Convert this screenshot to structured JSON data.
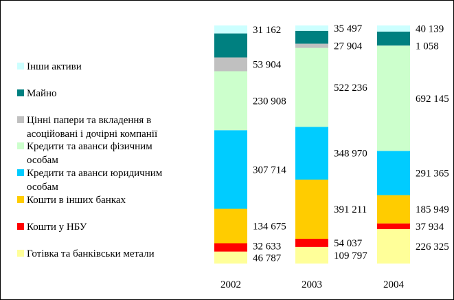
{
  "chart_data": {
    "type": "bar",
    "stacked": true,
    "normalized_100_percent": true,
    "categories": [
      "2002",
      "2003",
      "2004"
    ],
    "series": [
      {
        "name": "Готівка та банківськи метали",
        "color": "#FFFF99",
        "values": [
          46787,
          109797,
          226325
        ],
        "labels": [
          "46 787",
          "109 797",
          "226 325"
        ]
      },
      {
        "name": "Кошти у НБУ",
        "color": "#FF0000",
        "values": [
          32633,
          54037,
          37934
        ],
        "labels": [
          "32 633",
          "54 037",
          "37 934"
        ]
      },
      {
        "name": "Кошти в інших банках",
        "color": "#FFCC00",
        "values": [
          134675,
          391211,
          185949
        ],
        "labels": [
          "134 675",
          "391 211",
          "185 949"
        ]
      },
      {
        "name": "Кредити та аванси юридичним особам",
        "color": "#00CCFF",
        "values": [
          307714,
          348970,
          291365
        ],
        "labels": [
          "307 714",
          "348 970",
          "291 365"
        ]
      },
      {
        "name": "Кредити та аванси фізичним особам",
        "color": "#CCFFCC",
        "values": [
          230908,
          522236,
          692145
        ],
        "labels": [
          "230 908",
          "522 236",
          "692 145"
        ]
      },
      {
        "name": "Цінні папери та вкладення в асоційовані і дочірні компанії",
        "color": "#C0C0C0",
        "values": [
          53904,
          27904,
          1058
        ],
        "labels": [
          "53 904",
          "27 904",
          "1 058"
        ]
      },
      {
        "name": "Майно",
        "color": "#008080",
        "values": [
          94000,
          85000,
          92000
        ],
        "labels": [
          "",
          "",
          ""
        ]
      },
      {
        "name": "Інши активи",
        "color": "#CCFFFF",
        "values": [
          31162,
          35497,
          40139
        ],
        "labels": [
          "31 162",
          "35 497",
          "40 139"
        ]
      }
    ],
    "legend": {
      "position": "left",
      "order": [
        {
          "lines": [
            "Інши активи"
          ],
          "color": "#CCFFFF"
        },
        {
          "lines": [
            "Майно"
          ],
          "color": "#008080"
        },
        {
          "lines": [
            "Цінні папери та вкладення в",
            "асоційовані і дочірні компанії"
          ],
          "color": "#C0C0C0"
        },
        {
          "lines": [
            "Кредити та аванси фізичним",
            "особам"
          ],
          "color": "#CCFFCC"
        },
        {
          "lines": [
            "Кредити та аванси юридичним",
            "особам"
          ],
          "color": "#00CCFF"
        },
        {
          "lines": [
            "Кошти в інших банках"
          ],
          "color": "#FFCC00"
        },
        {
          "lines": [
            "Кошти у НБУ"
          ],
          "color": "#FF0000"
        },
        {
          "lines": [
            "Готівка та банківськи метали"
          ],
          "color": "#FFFF99"
        }
      ]
    },
    "grid": false
  }
}
